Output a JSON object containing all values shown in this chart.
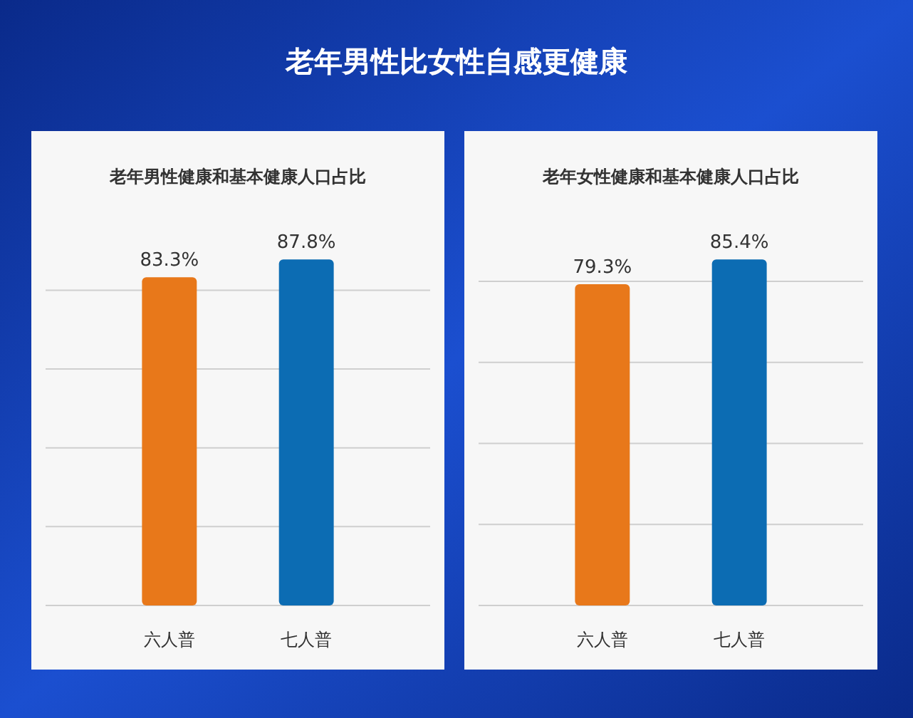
{
  "chart_data": [
    {
      "type": "bar",
      "title": "老年男性比女性自感更健康",
      "subtitle": "老年男性健康和基本健康人口占比",
      "categories": [
        "六人普",
        "七人普"
      ],
      "values": [
        83.3,
        87.8
      ],
      "colors": [
        "#e8781a",
        "#0c6cb3"
      ],
      "value_labels": [
        "83.3%",
        "87.8%"
      ],
      "grid": "y",
      "tick_labels": "x"
    },
    {
      "type": "bar",
      "subtitle": "老年女性健康和基本健康人口占比",
      "categories": [
        "六人普",
        "七人普"
      ],
      "values": [
        79.3,
        85.4
      ],
      "colors": [
        "#e8781a",
        "#0c6cb3"
      ],
      "value_labels": [
        "79.3%",
        "85.4%"
      ],
      "grid": "y",
      "tick_labels": "x"
    }
  ]
}
